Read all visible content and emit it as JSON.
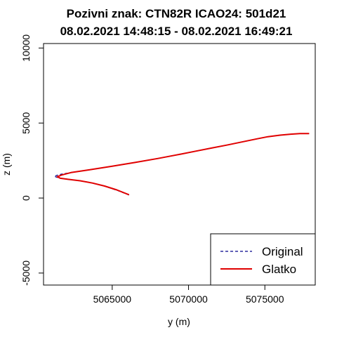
{
  "chart_data": {
    "type": "line",
    "title": "Pozivni znak: CTN82R   ICAO24: 501d21",
    "subtitle": "08.02.2021 14:48:15 - 08.02.2021 16:49:21",
    "xlabel": "y (m)",
    "ylabel": "z (m)",
    "xlim": [
      5060500,
      5078300
    ],
    "ylim": [
      -5800,
      10300
    ],
    "x_ticks": [
      5065000,
      5070000,
      5075000
    ],
    "x_tick_labels": [
      "5065000",
      "5070000",
      "5075000"
    ],
    "y_ticks": [
      -5000,
      0,
      5000,
      10000
    ],
    "y_tick_labels": [
      "-5000",
      "0",
      "5000",
      "10000"
    ],
    "grid": false,
    "legend": {
      "position": "bottom-right",
      "entries": [
        {
          "name": "Original",
          "color": "#00008b",
          "dash": "dashed"
        },
        {
          "name": "Glatko",
          "color": "#e00000",
          "dash": "solid"
        }
      ]
    },
    "series": [
      {
        "name": "Original",
        "color": "#00008b",
        "x": [
          5066100,
          5065300,
          5064500,
          5063700,
          5062900,
          5062100,
          5061500,
          5061200,
          5061500,
          5062300,
          5063500,
          5065000,
          5066500,
          5068000,
          5069500,
          5070500,
          5071500,
          5072500,
          5073500,
          5074500,
          5075200,
          5076000,
          5076700,
          5077300,
          5077900
        ],
        "y": [
          200,
          520,
          790,
          990,
          1150,
          1260,
          1340,
          1450,
          1560,
          1700,
          1880,
          2120,
          2370,
          2640,
          2930,
          3130,
          3330,
          3530,
          3740,
          3950,
          4090,
          4190,
          4260,
          4300,
          4300
        ]
      },
      {
        "name": "Glatko",
        "color": "#e00000",
        "x": [
          5066100,
          5065300,
          5064500,
          5063700,
          5062900,
          5062100,
          5061600,
          5061400,
          5061700,
          5062300,
          5063500,
          5065000,
          5066500,
          5068000,
          5069500,
          5070500,
          5071500,
          5072500,
          5073500,
          5074500,
          5075200,
          5076000,
          5076700,
          5077300,
          5077900
        ],
        "y": [
          220,
          540,
          800,
          1000,
          1150,
          1250,
          1320,
          1420,
          1540,
          1700,
          1880,
          2120,
          2370,
          2640,
          2930,
          3130,
          3330,
          3530,
          3740,
          3950,
          4090,
          4190,
          4260,
          4300,
          4300
        ]
      }
    ]
  }
}
